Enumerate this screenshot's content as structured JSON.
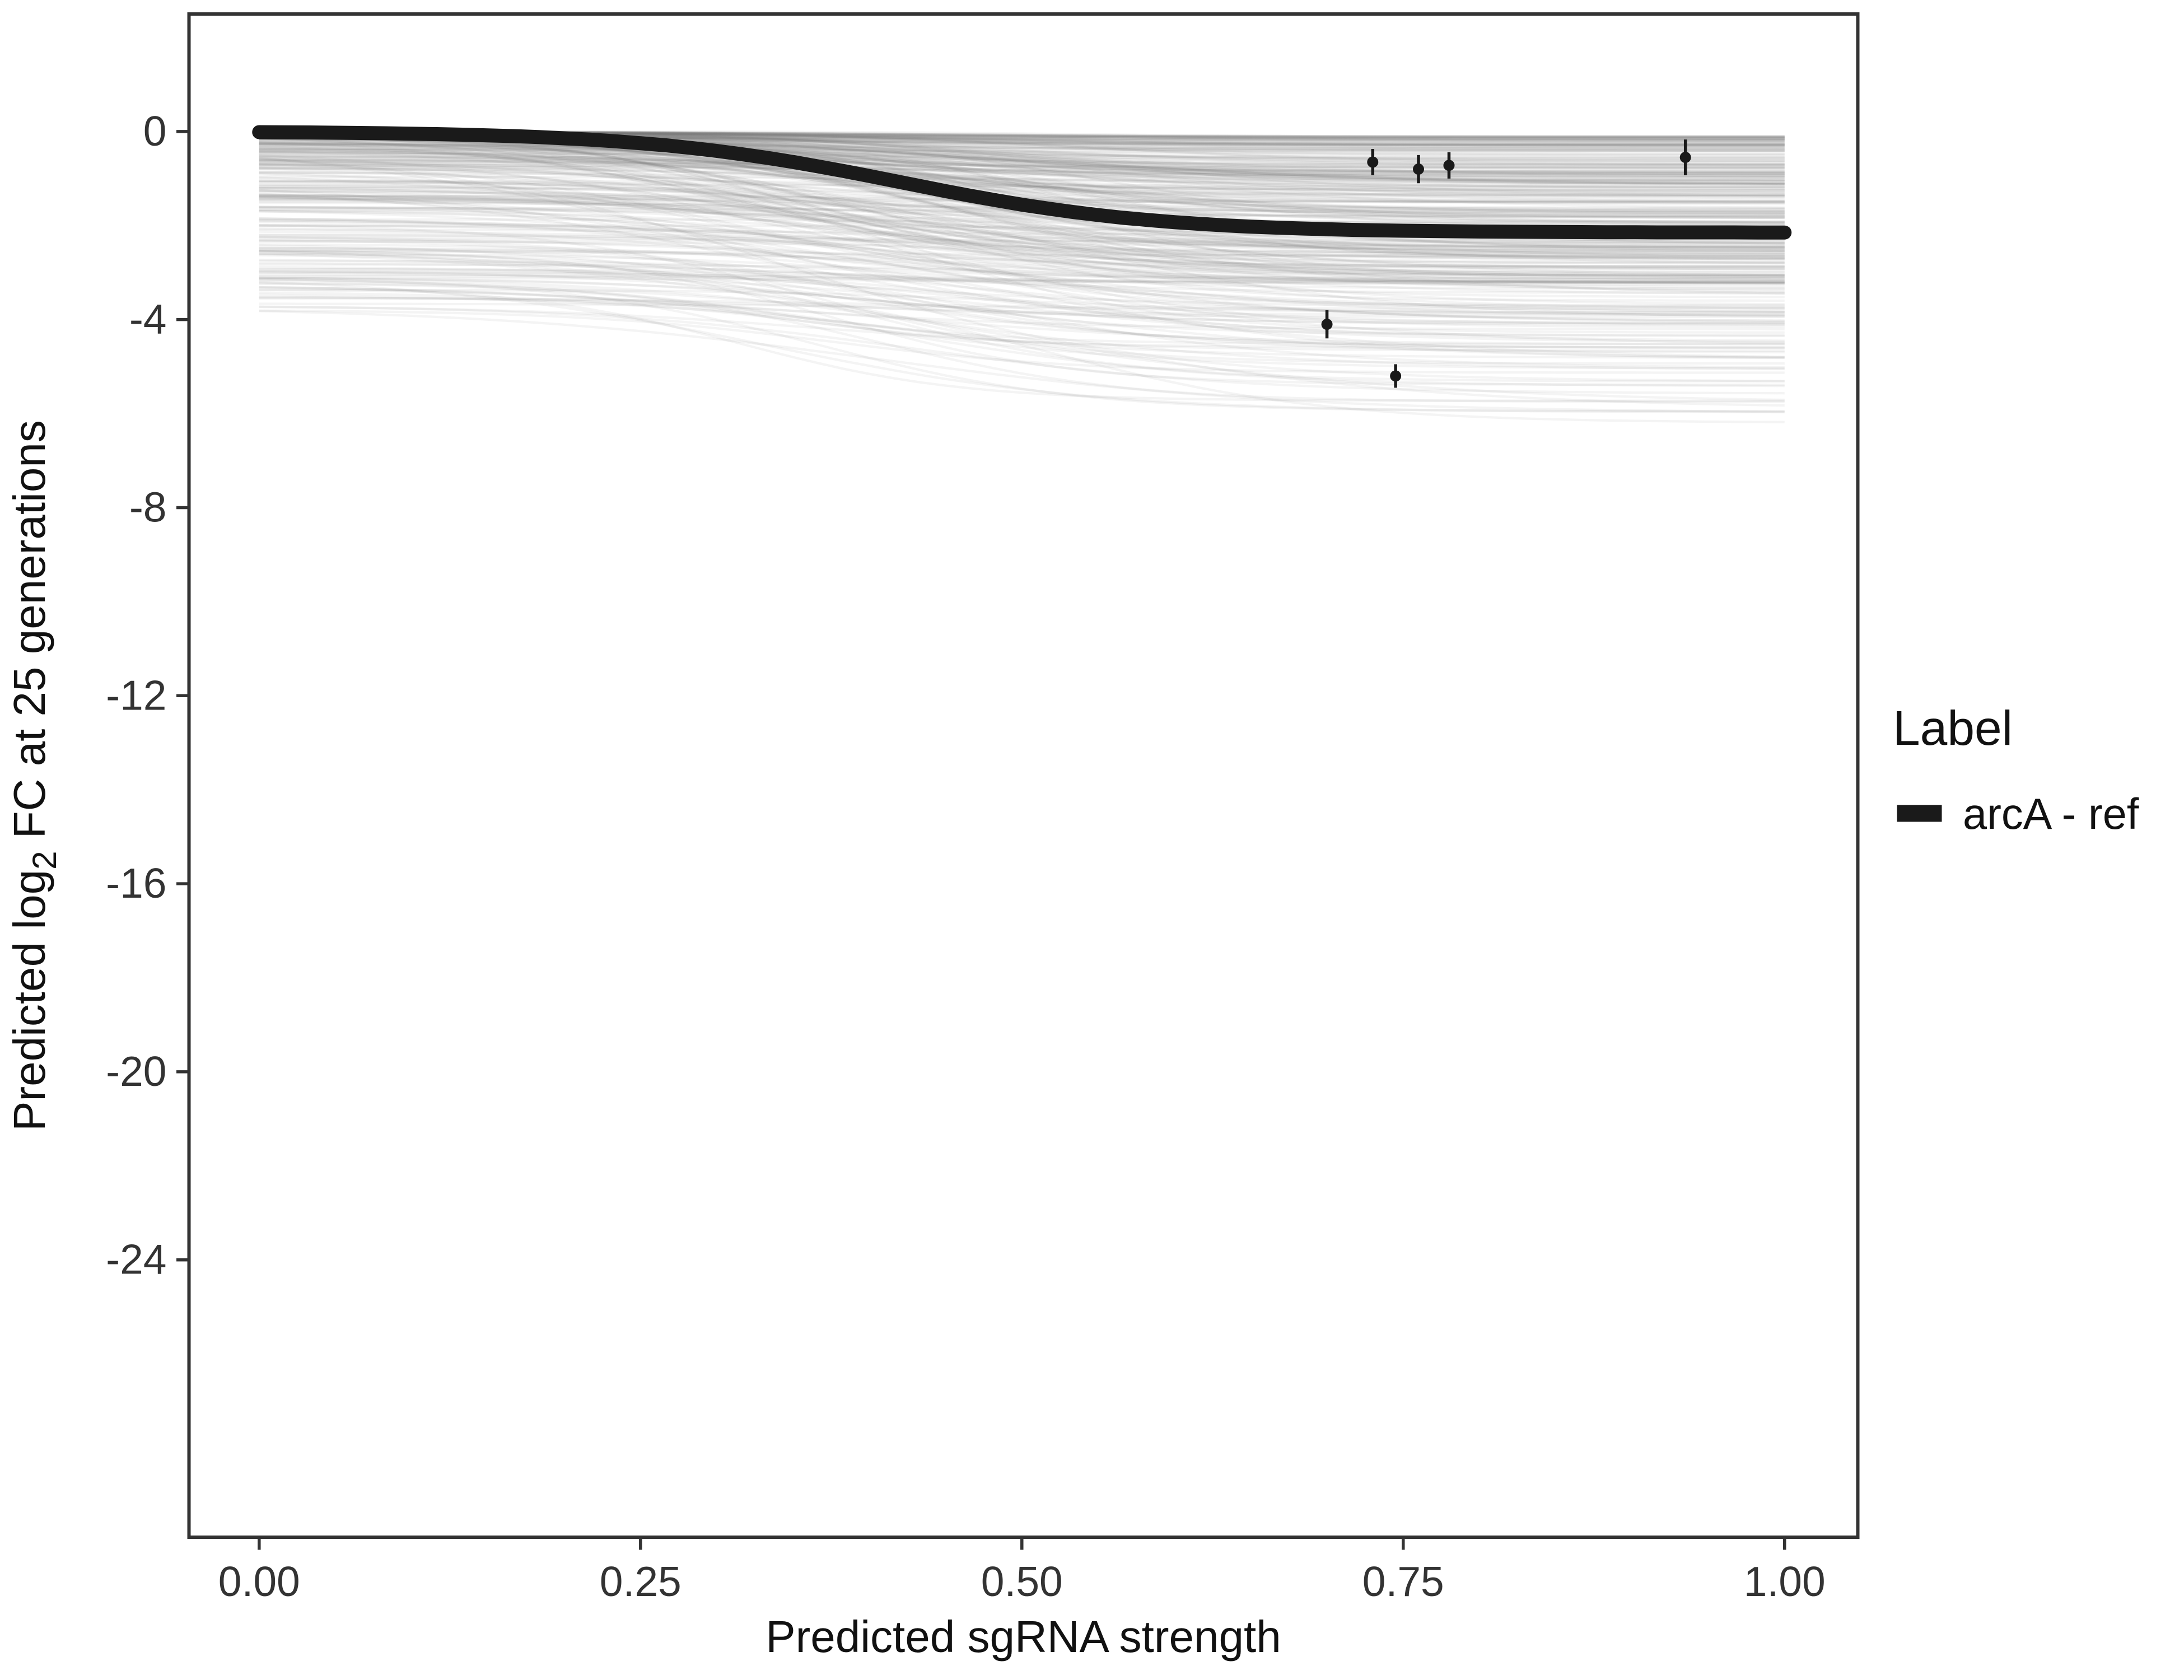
{
  "chart_data": {
    "type": "line",
    "title": "",
    "xlabel": "Predicted sgRNA strength",
    "ylabel": "Predicted log2 FC at 25 generations",
    "ylabel_parts": {
      "pre": "Predicted  log",
      "sub": "2",
      "post": " FC at 25 generations"
    },
    "xlim": [
      -0.046,
      1.048
    ],
    "ylim": [
      -29.9,
      2.5
    ],
    "grid": false,
    "xticks": [
      {
        "value": 0.0,
        "label": "0.00"
      },
      {
        "value": 0.25,
        "label": "0.25"
      },
      {
        "value": 0.5,
        "label": "0.50"
      },
      {
        "value": 0.75,
        "label": "0.75"
      },
      {
        "value": 1.0,
        "label": "1.00"
      }
    ],
    "yticks": [
      {
        "value": 0,
        "label": "0"
      },
      {
        "value": -4,
        "label": "-4"
      },
      {
        "value": -8,
        "label": "-8"
      },
      {
        "value": -12,
        "label": "-12"
      },
      {
        "value": -16,
        "label": "-16"
      },
      {
        "value": -20,
        "label": "-20"
      },
      {
        "value": -24,
        "label": "-24"
      }
    ],
    "legend": {
      "position": "right",
      "title": "Label",
      "entries": [
        {
          "label": "arcA - ref",
          "color": "#1a1a1a",
          "shape": "thick-line"
        }
      ]
    },
    "main_curve": {
      "name": "arcA - ref",
      "color": "#1a1a1a",
      "width": 10,
      "y_start": 0,
      "y_end": -2.15,
      "midpoint": 0.42,
      "steepness": 12
    },
    "posterior_curves": {
      "count": 350,
      "seed": 11,
      "color": "#6e6e6e",
      "opacity": 0.08,
      "width": 1.7,
      "y_start_range": [
        0,
        -3.8
      ],
      "drop_range": [
        0.1,
        3.1
      ],
      "midpoint_range": [
        0.3,
        0.55
      ],
      "steepness_range": [
        7,
        14
      ],
      "y_floor": -7.4
    },
    "points": [
      {
        "x": 0.73,
        "y": -0.65,
        "err": 0.28
      },
      {
        "x": 0.76,
        "y": -0.8,
        "err": 0.3
      },
      {
        "x": 0.78,
        "y": -0.72,
        "err": 0.28
      },
      {
        "x": 0.935,
        "y": -0.55,
        "err": 0.38
      },
      {
        "x": 0.7,
        "y": -4.1,
        "err": 0.3
      },
      {
        "x": 0.745,
        "y": -5.2,
        "err": 0.25
      }
    ],
    "point_style": {
      "color": "#1a1a1a",
      "radius": 4
    },
    "panel": {
      "border_color": "#333333",
      "background": "#ffffff"
    }
  }
}
